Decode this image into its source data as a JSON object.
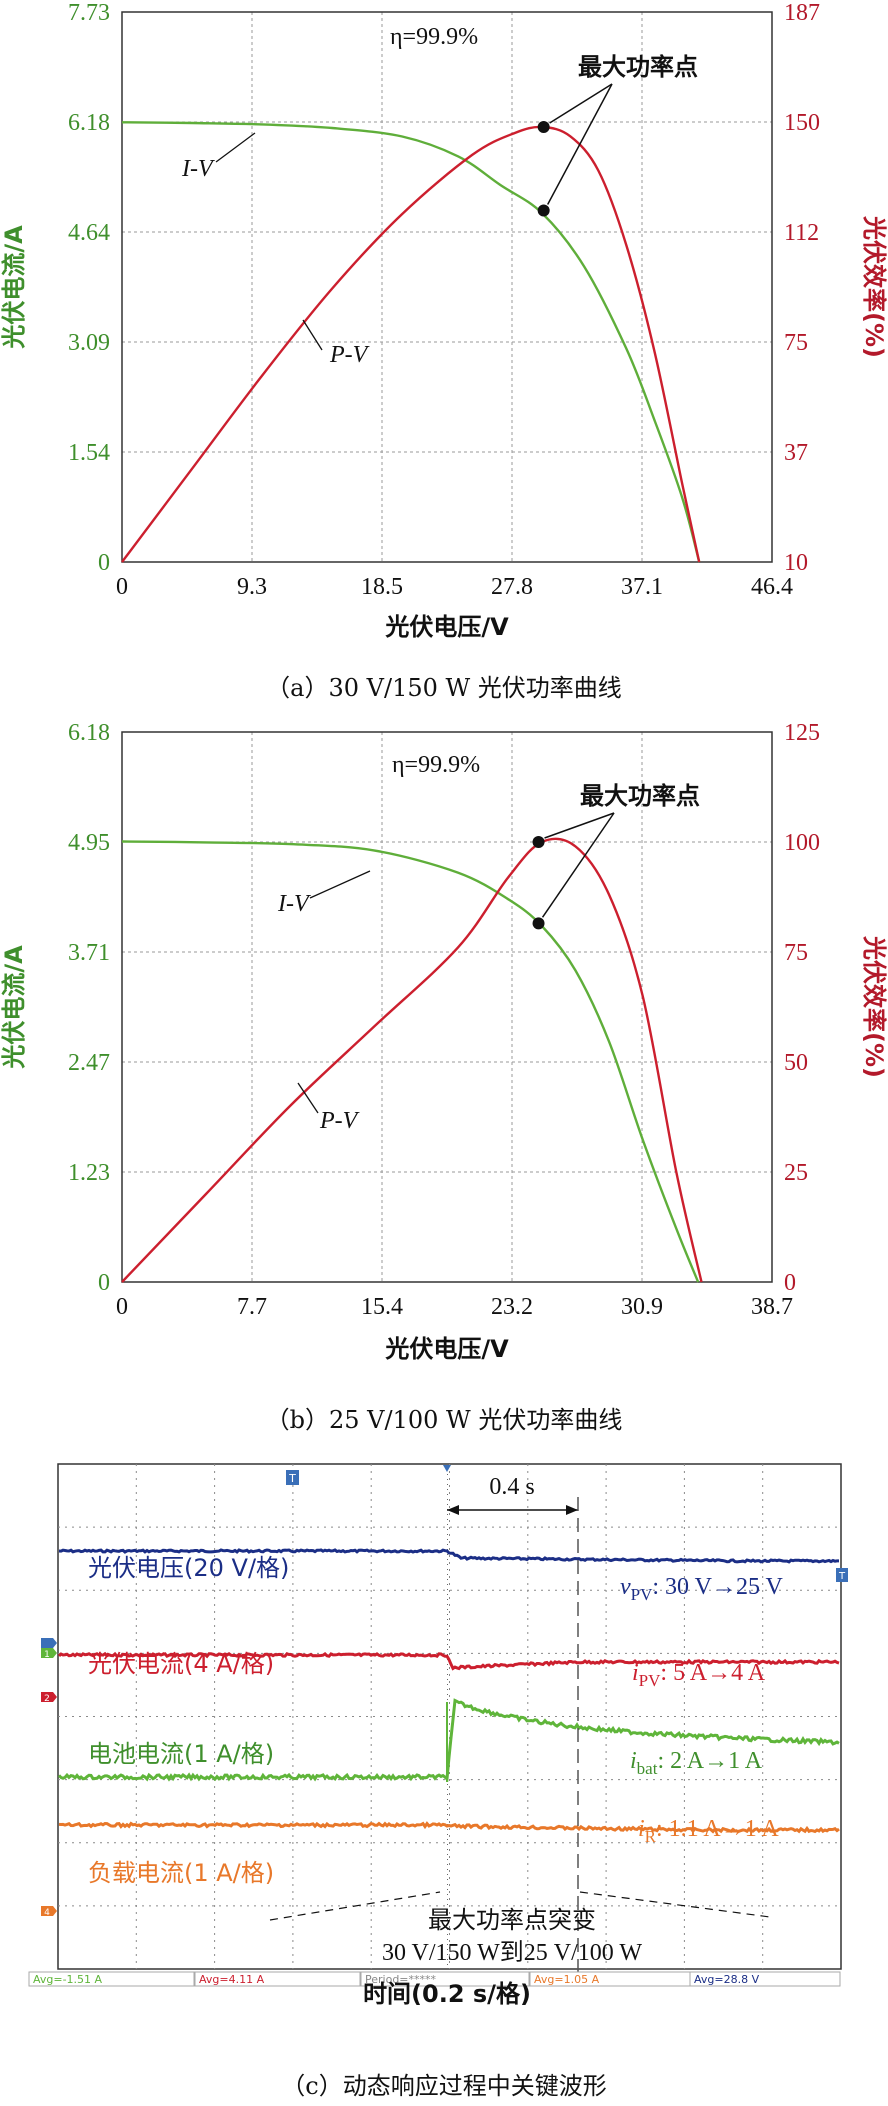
{
  "chart_data": [
    {
      "type": "line",
      "xlabel": "光伏电压/V",
      "ylabel_left": "光伏电流/A",
      "ylabel_right": "光伏效率(%)",
      "x_ticks": [
        "0",
        "9.3",
        "18.5",
        "27.8",
        "37.1",
        "46.4"
      ],
      "y_left_ticks": [
        "0",
        "1.54",
        "3.09",
        "4.64",
        "6.18",
        "7.73"
      ],
      "y_right_ticks": [
        "10",
        "37",
        "75",
        "112",
        "150",
        "187"
      ],
      "xlim": [
        0,
        46.4
      ],
      "ylim_left": [
        0,
        7.73
      ],
      "ylim_right": [
        10,
        187
      ],
      "grid": true,
      "annotation": "最大功率点",
      "efficiency_text": "η=99.9%",
      "series": [
        {
          "name": "I-V",
          "axis": "left",
          "color": "#5fae3a",
          "x": [
            0,
            5,
            10,
            15,
            20,
            24,
            27,
            30,
            33,
            36,
            38,
            40,
            41.2
          ],
          "y": [
            6.18,
            6.17,
            6.15,
            6.1,
            5.98,
            5.7,
            5.3,
            4.9,
            4.15,
            3.0,
            2.0,
            0.9,
            0
          ]
        },
        {
          "name": "P-V",
          "axis": "right",
          "color": "#cc1f2e",
          "x": [
            0,
            5,
            10,
            15,
            20,
            25,
            28,
            30,
            32,
            34,
            36,
            38,
            40,
            41.2
          ],
          "y": [
            10,
            40,
            70,
            98,
            122,
            141,
            148,
            150,
            147,
            136,
            112,
            78,
            35,
            10
          ]
        }
      ],
      "mpp": {
        "iv": [
          30.1,
          4.94
        ],
        "pv": [
          30.1,
          150
        ]
      }
    },
    {
      "type": "line",
      "xlabel": "光伏电压/V",
      "ylabel_left": "光伏电流/A",
      "ylabel_right": "光伏效率(%)",
      "x_ticks": [
        "0",
        "7.7",
        "15.4",
        "23.2",
        "30.9",
        "38.7"
      ],
      "y_left_ticks": [
        "0",
        "1.23",
        "2.47",
        "3.71",
        "4.95",
        "6.18"
      ],
      "y_right_ticks": [
        "0",
        "25",
        "50",
        "75",
        "100",
        "125"
      ],
      "xlim": [
        0,
        38.7
      ],
      "ylim_left": [
        0,
        6.18
      ],
      "ylim_right": [
        0,
        125
      ],
      "grid": true,
      "annotation": "最大功率点",
      "efficiency_text": "η=99.9%",
      "series": [
        {
          "name": "I-V",
          "axis": "left",
          "color": "#5fae3a",
          "x": [
            0,
            5,
            10,
            15,
            20,
            23,
            25,
            27,
            29,
            31,
            33,
            34.3
          ],
          "y": [
            4.95,
            4.94,
            4.92,
            4.85,
            4.6,
            4.3,
            4.0,
            3.5,
            2.7,
            1.6,
            0.6,
            0
          ]
        },
        {
          "name": "P-V",
          "axis": "right",
          "color": "#cc1f2e",
          "x": [
            0,
            5,
            10,
            15,
            20,
            23,
            25,
            27,
            29,
            31,
            33,
            34.5
          ],
          "y": [
            0,
            20,
            40,
            58,
            76,
            92,
            100,
            99,
            88,
            65,
            25,
            0
          ]
        }
      ],
      "mpp": {
        "iv": [
          24.8,
          4.03
        ],
        "pv": [
          24.8,
          100
        ]
      }
    }
  ],
  "scope": {
    "labels": {
      "pv_voltage": "光伏电压(20 V/格)",
      "pv_current": "光伏电流(4 A/格)",
      "bat_current": "电池电流(1 A/格)",
      "load_current": "负载电流(1 A/格)"
    },
    "delta_t": "0.4 s",
    "annotations": {
      "v_pv_sym": "v",
      "v_pv_sub": "PV",
      "v_pv_val": ": 30 V→25 V",
      "i_pv_sym": "i",
      "i_pv_sub": "PV",
      "i_pv_val": ": 5 A→4 A",
      "i_bat_sym": "i",
      "i_bat_sub": "bat",
      "i_bat_val": ": 2 A→1 A",
      "i_r_sym": "i",
      "i_r_sub": "R",
      "i_r_val": ": 1.1 A→1 A"
    },
    "event_line1": "最大功率点突变",
    "event_line2": "30 V/150 W到25 V/100 W",
    "status_bar": [
      "Avg=-1.51 A",
      "Avg=4.11 A",
      "Period=*****",
      "Avg=1.05 A",
      "Avg=28.8 V"
    ],
    "xlabel": "时间(0.2 s/格)",
    "colors": {
      "voltage": "#1b2e86",
      "pv_current": "#cc1f2e",
      "bat_current": "#5fb53a",
      "load_current": "#e8782a"
    }
  },
  "captions": {
    "a": "（a）30 V/150 W 光伏功率曲线",
    "b": "（b）25 V/100 W 光伏功率曲线",
    "c": "（c）动态响应过程中关键波形"
  }
}
